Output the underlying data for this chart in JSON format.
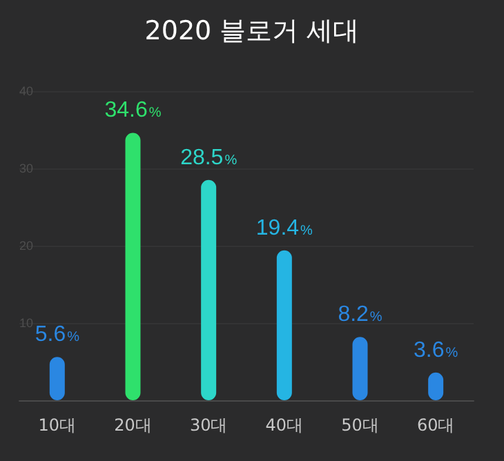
{
  "chart_data": {
    "type": "bar",
    "title": "2020 블로거 세대",
    "categories": [
      "10대",
      "20대",
      "30대",
      "40대",
      "50대",
      "60대"
    ],
    "values": [
      5.6,
      34.6,
      28.5,
      19.4,
      8.2,
      3.6
    ],
    "colors": [
      "#2a87e2",
      "#2fe06c",
      "#2dd6c9",
      "#25b5e3",
      "#2a87e2",
      "#2a87e2"
    ],
    "value_labels": [
      "5.6%",
      "34.6%",
      "28.5%",
      "19.4%",
      "8.2%",
      "3.6%"
    ],
    "ylim": [
      0,
      40
    ],
    "yticks": [
      10,
      20,
      30,
      40
    ],
    "grid": "y"
  }
}
